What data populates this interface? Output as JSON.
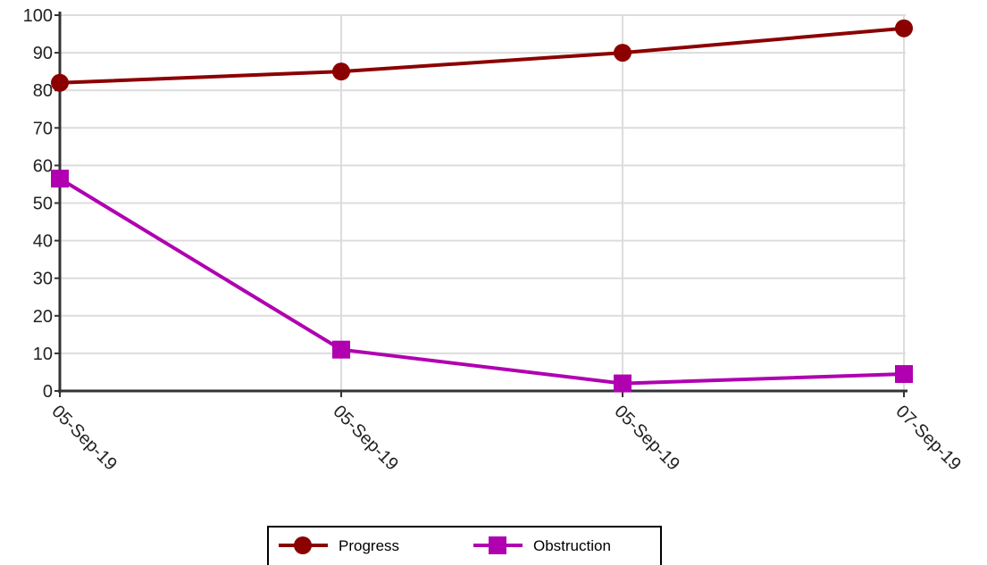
{
  "chart_data": {
    "type": "line",
    "title": "",
    "xlabel": "",
    "ylabel": "",
    "categories": [
      "05-Sep-19",
      "05-Sep-19",
      "05-Sep-19",
      "07-Sep-19"
    ],
    "ylim": [
      0,
      100
    ],
    "yticks": [
      0,
      10,
      20,
      30,
      40,
      50,
      60,
      70,
      80,
      90,
      100
    ],
    "grid": true,
    "legend_position": "bottom",
    "series": [
      {
        "name": "Progress",
        "values": [
          82,
          85,
          90,
          96.5
        ],
        "color": "#8b0000",
        "marker": "circle"
      },
      {
        "name": "Obstruction",
        "values": [
          56.5,
          11,
          2,
          4.5
        ],
        "color": "#b000b0",
        "marker": "square"
      }
    ]
  }
}
